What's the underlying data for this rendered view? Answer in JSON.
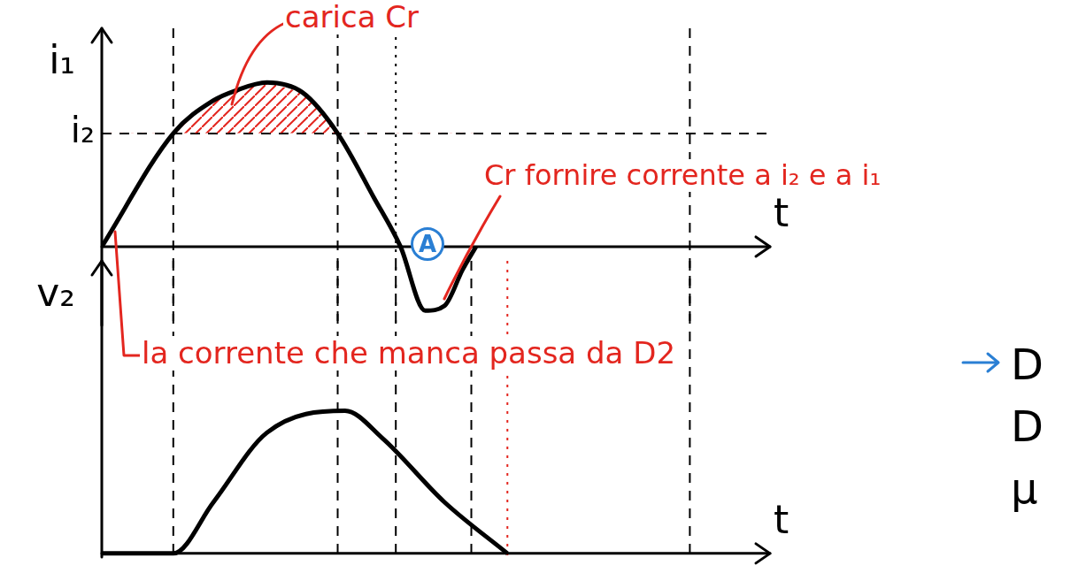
{
  "chart_data": [
    {
      "type": "line",
      "xlabel": "t",
      "ylabel": "i₁",
      "x": [
        0,
        1.07,
        1.67,
        2.0,
        2.47,
        3.0,
        3.53,
        4.07,
        4.47,
        4.84,
        5.13,
        5.4,
        5.6
      ],
      "values": [
        0,
        0.69,
        0.89,
        0.95,
        1.0,
        0.94,
        0.69,
        0.3,
        0,
        -0.39,
        -0.36,
        -0.14,
        0
      ],
      "color": "#000000",
      "marker": "none",
      "xlim": [
        0,
        10
      ],
      "ylim": [
        -0.48,
        1.33
      ],
      "xticks": [],
      "yticks": [
        {
          "value": 0.69,
          "label": "i₂"
        }
      ],
      "grid": true,
      "tick_labels": "y",
      "guides": [
        {
          "x": 1.07,
          "line_style": "dashed",
          "color": "#000000"
        },
        {
          "x": 3.53,
          "line_style": "dashed",
          "color": "#000000"
        },
        {
          "x": 4.4,
          "line_style": "dotted",
          "color": "#000000"
        },
        {
          "x": 8.8,
          "line_style": "dashed",
          "color": "#000000"
        }
      ],
      "annotations": [
        {
          "text": "carica Cr",
          "color": "#e3261f"
        },
        {
          "text": "Cr fornire corrente a i₂ e a i₁",
          "color": "#e3261f"
        },
        {
          "text": "la corrente che manca passa da D2",
          "color": "#e3261f"
        },
        {
          "text": "A",
          "color": "#2a7fd4"
        }
      ]
    },
    {
      "type": "line",
      "xlabel": "t",
      "ylabel": "v₂",
      "x": [
        0,
        1.07,
        1.67,
        2.47,
        3.64,
        4.2,
        5.13,
        6.07
      ],
      "values": [
        0,
        0,
        0.28,
        0.66,
        0.78,
        0.63,
        0.28,
        0
      ],
      "color": "#000000",
      "marker": "none",
      "xlim": [
        0,
        10
      ],
      "ylim": [
        -0.02,
        1.6
      ],
      "xticks": [],
      "yticks": [],
      "grid": false,
      "tick_labels": false,
      "guides": [
        {
          "x": 1.07,
          "line_style": "dashed",
          "color": "#000000"
        },
        {
          "x": 3.53,
          "line_style": "dashed",
          "color": "#000000"
        },
        {
          "x": 4.4,
          "line_style": "dashed",
          "color": "#000000"
        },
        {
          "x": 5.53,
          "line_style": "dashed",
          "color": "#000000"
        },
        {
          "x": 6.07,
          "line_style": "dotted",
          "color": "#e3261f"
        },
        {
          "x": 8.8,
          "line_style": "dashed",
          "color": "#000000"
        }
      ],
      "annotations": [
        {
          "text": "D",
          "color": "#000000"
        },
        {
          "text": "D",
          "color": "#000000"
        },
        {
          "text": "μ",
          "color": "#000000"
        }
      ]
    }
  ]
}
